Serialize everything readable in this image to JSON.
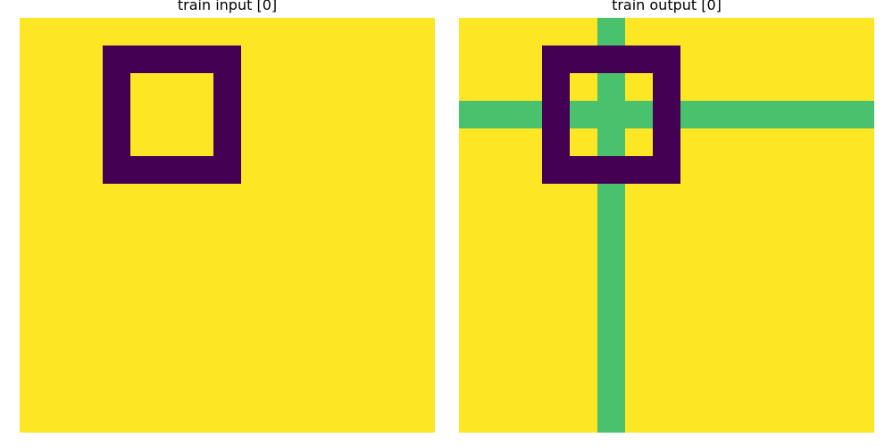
{
  "palette": {
    "0": "#fde725",
    "1": "#440154",
    "2": "#4ac16d"
  },
  "panels": [
    {
      "title": "train input [0]",
      "grid": [
        [
          0,
          0,
          0,
          0,
          0,
          0,
          0,
          0,
          0,
          0,
          0,
          0,
          0,
          0,
          0
        ],
        [
          0,
          0,
          0,
          1,
          1,
          1,
          1,
          1,
          0,
          0,
          0,
          0,
          0,
          0,
          0
        ],
        [
          0,
          0,
          0,
          1,
          0,
          0,
          0,
          1,
          0,
          0,
          0,
          0,
          0,
          0,
          0
        ],
        [
          0,
          0,
          0,
          1,
          0,
          0,
          0,
          1,
          0,
          0,
          0,
          0,
          0,
          0,
          0
        ],
        [
          0,
          0,
          0,
          1,
          0,
          0,
          0,
          1,
          0,
          0,
          0,
          0,
          0,
          0,
          0
        ],
        [
          0,
          0,
          0,
          1,
          1,
          1,
          1,
          1,
          0,
          0,
          0,
          0,
          0,
          0,
          0
        ],
        [
          0,
          0,
          0,
          0,
          0,
          0,
          0,
          0,
          0,
          0,
          0,
          0,
          0,
          0,
          0
        ],
        [
          0,
          0,
          0,
          0,
          0,
          0,
          0,
          0,
          0,
          0,
          0,
          0,
          0,
          0,
          0
        ],
        [
          0,
          0,
          0,
          0,
          0,
          0,
          0,
          0,
          0,
          0,
          0,
          0,
          0,
          0,
          0
        ],
        [
          0,
          0,
          0,
          0,
          0,
          0,
          0,
          0,
          0,
          0,
          0,
          0,
          0,
          0,
          0
        ],
        [
          0,
          0,
          0,
          0,
          0,
          0,
          0,
          0,
          0,
          0,
          0,
          0,
          0,
          0,
          0
        ],
        [
          0,
          0,
          0,
          0,
          0,
          0,
          0,
          0,
          0,
          0,
          0,
          0,
          0,
          0,
          0
        ],
        [
          0,
          0,
          0,
          0,
          0,
          0,
          0,
          0,
          0,
          0,
          0,
          0,
          0,
          0,
          0
        ],
        [
          0,
          0,
          0,
          0,
          0,
          0,
          0,
          0,
          0,
          0,
          0,
          0,
          0,
          0,
          0
        ],
        [
          0,
          0,
          0,
          0,
          0,
          0,
          0,
          0,
          0,
          0,
          0,
          0,
          0,
          0,
          0
        ]
      ]
    },
    {
      "title": "train output [0]",
      "grid": [
        [
          0,
          0,
          0,
          0,
          0,
          2,
          0,
          0,
          0,
          0,
          0,
          0,
          0,
          0,
          0
        ],
        [
          0,
          0,
          0,
          1,
          1,
          1,
          1,
          1,
          0,
          0,
          0,
          0,
          0,
          0,
          0
        ],
        [
          0,
          0,
          0,
          1,
          0,
          2,
          0,
          1,
          0,
          0,
          0,
          0,
          0,
          0,
          0
        ],
        [
          2,
          2,
          2,
          1,
          2,
          2,
          2,
          1,
          2,
          2,
          2,
          2,
          2,
          2,
          2
        ],
        [
          0,
          0,
          0,
          1,
          0,
          2,
          0,
          1,
          0,
          0,
          0,
          0,
          0,
          0,
          0
        ],
        [
          0,
          0,
          0,
          1,
          1,
          1,
          1,
          1,
          0,
          0,
          0,
          0,
          0,
          0,
          0
        ],
        [
          0,
          0,
          0,
          0,
          0,
          2,
          0,
          0,
          0,
          0,
          0,
          0,
          0,
          0,
          0
        ],
        [
          0,
          0,
          0,
          0,
          0,
          2,
          0,
          0,
          0,
          0,
          0,
          0,
          0,
          0,
          0
        ],
        [
          0,
          0,
          0,
          0,
          0,
          2,
          0,
          0,
          0,
          0,
          0,
          0,
          0,
          0,
          0
        ],
        [
          0,
          0,
          0,
          0,
          0,
          2,
          0,
          0,
          0,
          0,
          0,
          0,
          0,
          0,
          0
        ],
        [
          0,
          0,
          0,
          0,
          0,
          2,
          0,
          0,
          0,
          0,
          0,
          0,
          0,
          0,
          0
        ],
        [
          0,
          0,
          0,
          0,
          0,
          2,
          0,
          0,
          0,
          0,
          0,
          0,
          0,
          0,
          0
        ],
        [
          0,
          0,
          0,
          0,
          0,
          2,
          0,
          0,
          0,
          0,
          0,
          0,
          0,
          0,
          0
        ],
        [
          0,
          0,
          0,
          0,
          0,
          2,
          0,
          0,
          0,
          0,
          0,
          0,
          0,
          0,
          0
        ],
        [
          0,
          0,
          0,
          0,
          0,
          2,
          0,
          0,
          0,
          0,
          0,
          0,
          0,
          0,
          0
        ]
      ]
    }
  ]
}
